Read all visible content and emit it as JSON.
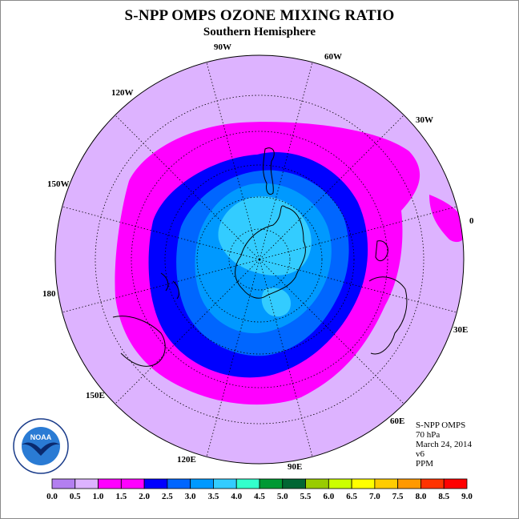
{
  "header": {
    "title": "S-NPP OMPS OZONE MIXING RATIO",
    "subtitle": "Southern Hemisphere"
  },
  "map": {
    "projection": "polar-stereographic-south",
    "longitude_labels": [
      "90W",
      "60W",
      "30W",
      "0",
      "30E",
      "60E",
      "90E",
      "120E",
      "150E",
      "180",
      "150W",
      "120W"
    ]
  },
  "info": {
    "instrument": "S-NPP OMPS",
    "level": "70 hPa",
    "date": "March 24, 2014",
    "version": "v6",
    "units": "PPM"
  },
  "logo": {
    "text": "NOAA"
  },
  "colorbar": {
    "ticks": [
      "0.0",
      "0.5",
      "1.0",
      "1.5",
      "2.0",
      "2.5",
      "3.0",
      "3.5",
      "4.0",
      "4.5",
      "5.0",
      "5.5",
      "6.0",
      "6.5",
      "7.0",
      "7.5",
      "8.0",
      "8.5",
      "9.0"
    ],
    "colors": [
      "#b37ff0",
      "#ddb3ff",
      "#ff00ff",
      "#ff00ff",
      "#0000ff",
      "#0066ff",
      "#0099ff",
      "#33ccff",
      "#33ffcc",
      "#009933",
      "#006633",
      "#99cc00",
      "#ccff00",
      "#ffff00",
      "#ffcc00",
      "#ff9900",
      "#ff3300",
      "#ff0000",
      "#996633"
    ]
  },
  "chart_data": {
    "type": "heatmap",
    "title": "S-NPP OMPS OZONE MIXING RATIO",
    "subtitle": "Southern Hemisphere",
    "units": "PPM",
    "scale": [
      0.0,
      0.5,
      1.0,
      1.5,
      2.0,
      2.5,
      3.0,
      3.5,
      4.0,
      4.5,
      5.0,
      5.5,
      6.0,
      6.5,
      7.0,
      7.5,
      8.0,
      8.5,
      9.0
    ]
  }
}
